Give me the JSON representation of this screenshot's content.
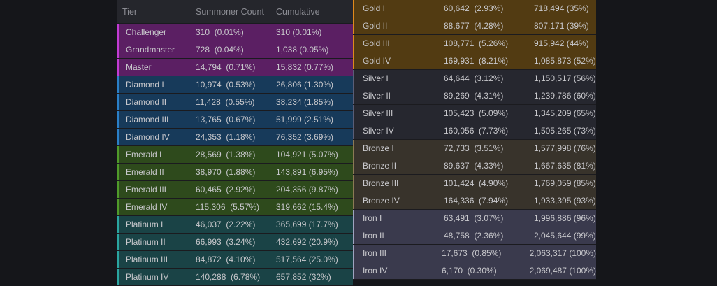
{
  "header": {
    "tier": "Tier",
    "count": "Summoner Count",
    "cumulative": "Cumulative"
  },
  "colors": {
    "challenger": {
      "bg": "#5b1f63",
      "accent": "#c23bd4"
    },
    "diamond": {
      "bg": "#173a5a",
      "accent": "#2a7fc7"
    },
    "emerald": {
      "bg": "#2e4a1c",
      "accent": "#4f9a2a"
    },
    "platinum": {
      "bg": "#1a4346",
      "accent": "#2aa5a0"
    },
    "gold": {
      "bg": "#523b12",
      "accent": "#e08a1c"
    },
    "silver": {
      "bg": "#26272f",
      "accent": "#5a5e78"
    },
    "bronze": {
      "bg": "#38332b",
      "accent": "#8c7a55"
    },
    "iron": {
      "bg": "#3a3a4d",
      "accent": "#9fa4c0"
    }
  },
  "left_rows": [
    {
      "tier": "Challenger",
      "count": "310  (0.01%)",
      "cumulative": "310 (0.01%)",
      "group": "challenger"
    },
    {
      "tier": "Grandmaster",
      "count": "728  (0.04%)",
      "cumulative": "1,038 (0.05%)",
      "group": "challenger"
    },
    {
      "tier": "Master",
      "count": "14,794  (0.71%)",
      "cumulative": "15,832 (0.77%)",
      "group": "challenger"
    },
    {
      "tier": "Diamond I",
      "count": "10,974  (0.53%)",
      "cumulative": "26,806 (1.30%)",
      "group": "diamond"
    },
    {
      "tier": "Diamond II",
      "count": "11,428  (0.55%)",
      "cumulative": "38,234 (1.85%)",
      "group": "diamond"
    },
    {
      "tier": "Diamond III",
      "count": "13,765  (0.67%)",
      "cumulative": "51,999 (2.51%)",
      "group": "diamond"
    },
    {
      "tier": "Diamond IV",
      "count": "24,353  (1.18%)",
      "cumulative": "76,352 (3.69%)",
      "group": "diamond"
    },
    {
      "tier": "Emerald I",
      "count": "28,569  (1.38%)",
      "cumulative": "104,921 (5.07%)",
      "group": "emerald"
    },
    {
      "tier": "Emerald II",
      "count": "38,970  (1.88%)",
      "cumulative": "143,891 (6.95%)",
      "group": "emerald"
    },
    {
      "tier": "Emerald III",
      "count": "60,465  (2.92%)",
      "cumulative": "204,356 (9.87%)",
      "group": "emerald"
    },
    {
      "tier": "Emerald IV",
      "count": "115,306  (5.57%)",
      "cumulative": "319,662 (15.4%)",
      "group": "emerald"
    },
    {
      "tier": "Platinum I",
      "count": "46,037  (2.22%)",
      "cumulative": "365,699 (17.7%)",
      "group": "platinum"
    },
    {
      "tier": "Platinum II",
      "count": "66,993  (3.24%)",
      "cumulative": "432,692 (20.9%)",
      "group": "platinum"
    },
    {
      "tier": "Platinum III",
      "count": "84,872  (4.10%)",
      "cumulative": "517,564 (25.0%)",
      "group": "platinum"
    },
    {
      "tier": "Platinum IV",
      "count": "140,288  (6.78%)",
      "cumulative": "657,852 (32%)",
      "group": "platinum"
    }
  ],
  "right_rows": [
    {
      "tier": "Gold I",
      "count": "60,642  (2.93%)",
      "cumulative": "718,494 (35%)",
      "group": "gold"
    },
    {
      "tier": "Gold II",
      "count": "88,677  (4.28%)",
      "cumulative": "807,171 (39%)",
      "group": "gold"
    },
    {
      "tier": "Gold III",
      "count": "108,771  (5.26%)",
      "cumulative": "915,942 (44%)",
      "group": "gold"
    },
    {
      "tier": "Gold IV",
      "count": "169,931  (8.21%)",
      "cumulative": "1,085,873 (52%)",
      "group": "gold"
    },
    {
      "tier": "Silver I",
      "count": "64,644  (3.12%)",
      "cumulative": "1,150,517 (56%)",
      "group": "silver"
    },
    {
      "tier": "Silver II",
      "count": "89,269  (4.31%)",
      "cumulative": "1,239,786 (60%)",
      "group": "silver"
    },
    {
      "tier": "Silver III",
      "count": "105,423  (5.09%)",
      "cumulative": "1,345,209 (65%)",
      "group": "silver"
    },
    {
      "tier": "Silver IV",
      "count": "160,056  (7.73%)",
      "cumulative": "1,505,265 (73%)",
      "group": "silver"
    },
    {
      "tier": "Bronze I",
      "count": "72,733  (3.51%)",
      "cumulative": "1,577,998 (76%)",
      "group": "bronze"
    },
    {
      "tier": "Bronze II",
      "count": "89,637  (4.33%)",
      "cumulative": "1,667,635 (81%)",
      "group": "bronze"
    },
    {
      "tier": "Bronze III",
      "count": "101,424  (4.90%)",
      "cumulative": "1,769,059 (85%)",
      "group": "bronze"
    },
    {
      "tier": "Bronze IV",
      "count": "164,336  (7.94%)",
      "cumulative": "1,933,395 (93%)",
      "group": "bronze"
    },
    {
      "tier": "Iron I",
      "count": "63,491  (3.07%)",
      "cumulative": "1,996,886 (96%)",
      "group": "iron"
    },
    {
      "tier": "Iron II",
      "count": "48,758  (2.36%)",
      "cumulative": "2,045,644 (99%)",
      "group": "iron"
    },
    {
      "tier": "Iron III",
      "count": "17,673  (0.85%)",
      "cumulative": "2,063,317 (100%)",
      "group": "iron"
    },
    {
      "tier": "Iron IV",
      "count": "6,170  (0.30%)",
      "cumulative": "2,069,487 (100%)",
      "group": "iron"
    }
  ]
}
